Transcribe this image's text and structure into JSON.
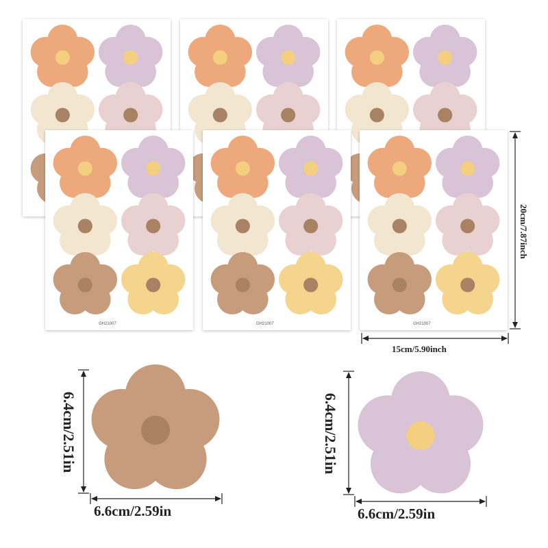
{
  "colors": {
    "orange": "#EDA97C",
    "purple": "#D8C3D7",
    "cream": "#F3E6D1",
    "pink": "#E9D1D1",
    "tan": "#C69C7D",
    "yellow": "#F5D48E",
    "yellow_center": "#F4CF7F",
    "brown_center": "#A98163"
  },
  "sheets": {
    "code": "GH21007"
  },
  "dimensions": {
    "sheet_height": "20cm/7.87inch",
    "sheet_width": "15cm/5.90inch",
    "flower_tan_height": "6.4cm/2.51in",
    "flower_tan_width": "6.6cm/2.59in",
    "flower_purple_height": "6.4cm/2.51in",
    "flower_purple_width": "6.6cm/2.59in"
  },
  "icons": [
    "flower-sticker-icon",
    "arrow-icon"
  ]
}
